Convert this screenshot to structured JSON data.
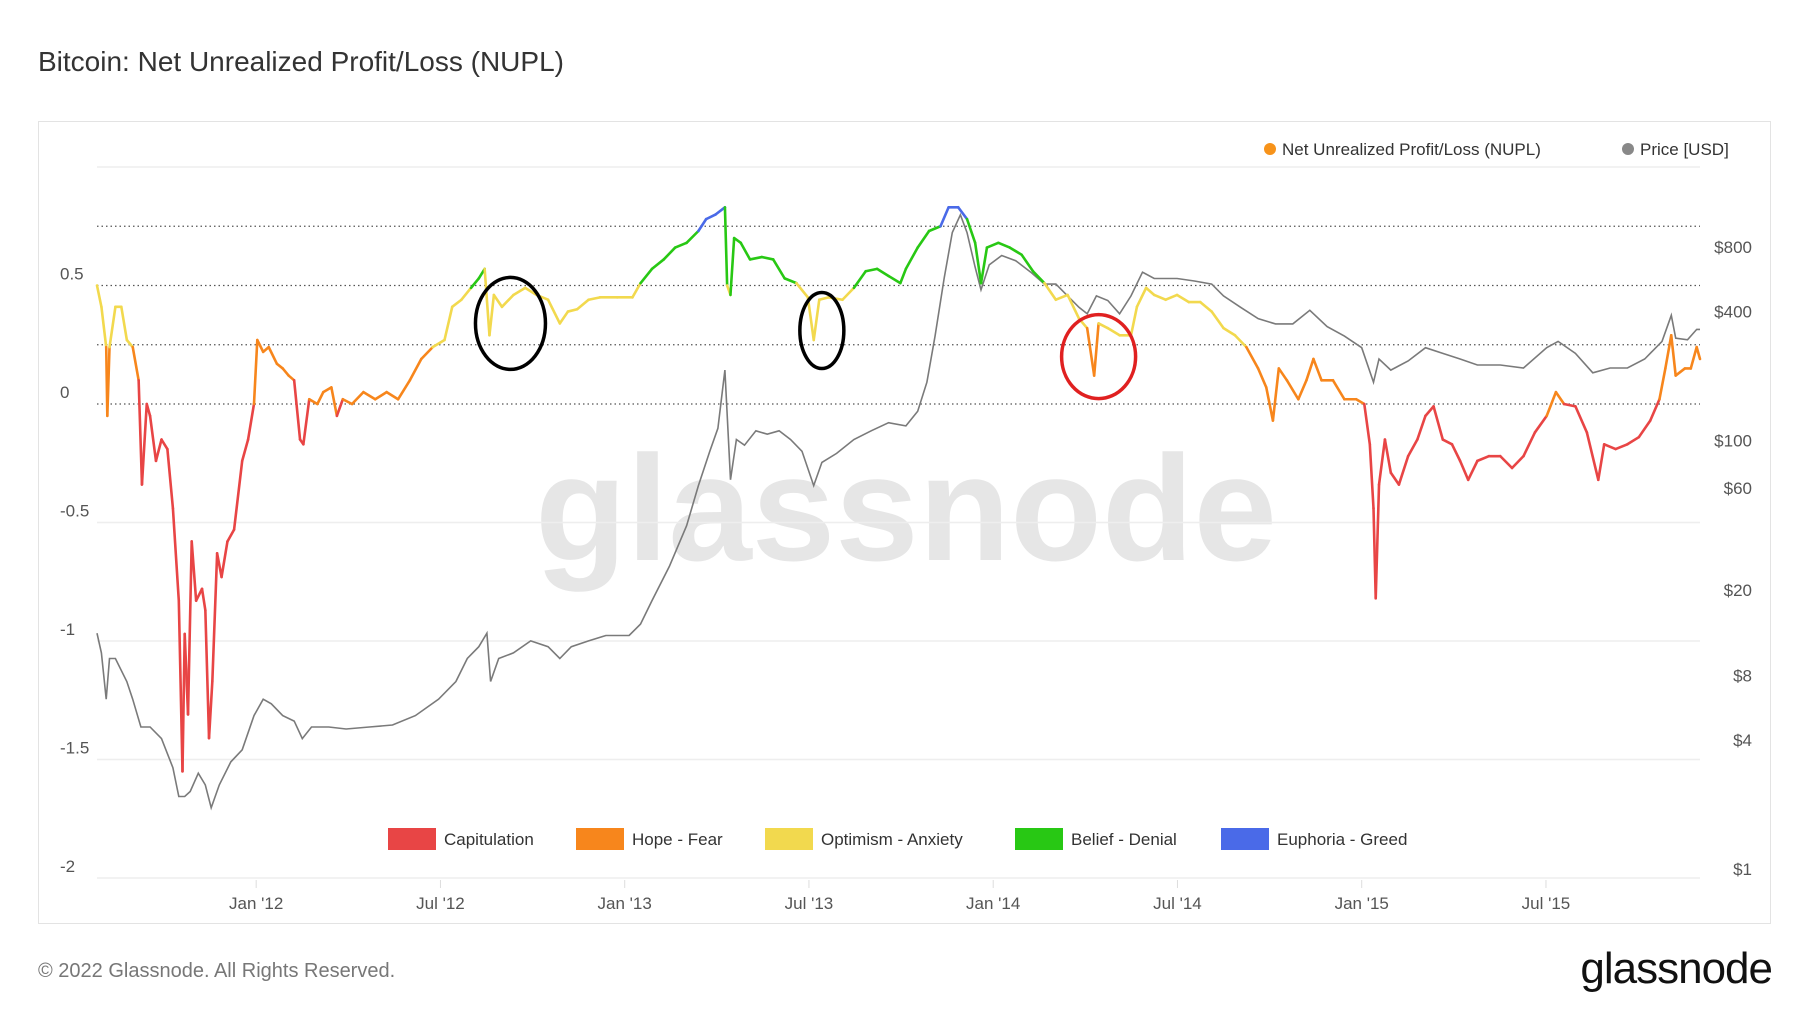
{
  "title": "Bitcoin: Net Unrealized Profit/Loss (NUPL)",
  "footer": "© 2022 Glassnode. All Rights Reserved.",
  "logo": "glassnode",
  "watermark": "glassnode",
  "chart_data": {
    "type": "line",
    "title": "Bitcoin: Net Unrealized Profit/Loss (NUPL)",
    "x_unit": "decimal year",
    "xlim": [
      2011.568,
      2015.918
    ],
    "x_ticks": [
      {
        "x": 2012.0,
        "label": "Jan '12"
      },
      {
        "x": 2012.5,
        "label": "Jul '12"
      },
      {
        "x": 2013.0,
        "label": "Jan '13"
      },
      {
        "x": 2013.5,
        "label": "Jul '13"
      },
      {
        "x": 2014.0,
        "label": "Jan '14"
      },
      {
        "x": 2014.5,
        "label": "Jul '14"
      },
      {
        "x": 2015.0,
        "label": "Jan '15"
      },
      {
        "x": 2015.5,
        "label": "Jul '15"
      }
    ],
    "y_left": {
      "ylim": [
        -2,
        1
      ],
      "ticks": [
        {
          "v": 0.5,
          "label": "0.5"
        },
        {
          "v": 0,
          "label": "0"
        },
        {
          "v": -0.5,
          "label": "-0.5"
        },
        {
          "v": -1,
          "label": "-1"
        },
        {
          "v": -1.5,
          "label": "-1.5"
        },
        {
          "v": -2,
          "label": "-2"
        }
      ],
      "dotted_levels": [
        0.75,
        0.5,
        0.25,
        0
      ],
      "solid_levels": [
        1,
        -0.5,
        -1,
        -1.5,
        -2
      ]
    },
    "y_right": {
      "scale": "log",
      "ticks": [
        {
          "v": 800,
          "label": "$800"
        },
        {
          "v": 400,
          "label": "$400"
        },
        {
          "v": 100,
          "label": "$100"
        },
        {
          "v": 60,
          "label": "$60"
        },
        {
          "v": 20,
          "label": "$20"
        },
        {
          "v": 8,
          "label": "$8"
        },
        {
          "v": 4,
          "label": "$4"
        },
        {
          "v": 1,
          "label": "$1"
        }
      ]
    },
    "legend_top": [
      {
        "label": "Net Unrealized Profit/Loss (NUPL)",
        "color": "#f7931a"
      },
      {
        "label": "Price [USD]",
        "color": "#888888"
      }
    ],
    "zones": [
      {
        "label": "Capitulation",
        "color": "#e84545",
        "min": -10,
        "max": 0
      },
      {
        "label": "Hope - Fear",
        "color": "#f7861c",
        "min": 0,
        "max": 0.25
      },
      {
        "label": "Optimism - Anxiety",
        "color": "#f2d94e",
        "min": 0.25,
        "max": 0.5
      },
      {
        "label": "Belief - Denial",
        "color": "#28c814",
        "min": 0.5,
        "max": 0.75
      },
      {
        "label": "Euphoria - Greed",
        "color": "#4a6ae8",
        "min": 0.75,
        "max": 10
      }
    ],
    "nupl": [
      [
        2011.568,
        0.5
      ],
      [
        2011.58,
        0.41
      ],
      [
        2011.593,
        0.24
      ],
      [
        2011.596,
        -0.05
      ],
      [
        2011.602,
        0.24
      ],
      [
        2011.618,
        0.41
      ],
      [
        2011.634,
        0.41
      ],
      [
        2011.649,
        0.27
      ],
      [
        2011.665,
        0.24
      ],
      [
        2011.681,
        0.1
      ],
      [
        2011.69,
        -0.34
      ],
      [
        2011.703,
        0
      ],
      [
        2011.712,
        -0.05
      ],
      [
        2011.728,
        -0.24
      ],
      [
        2011.743,
        -0.15
      ],
      [
        2011.759,
        -0.19
      ],
      [
        2011.774,
        -0.44
      ],
      [
        2011.79,
        -0.83
      ],
      [
        2011.8,
        -1.55
      ],
      [
        2011.806,
        -0.97
      ],
      [
        2011.815,
        -1.31
      ],
      [
        2011.825,
        -0.58
      ],
      [
        2011.837,
        -0.83
      ],
      [
        2011.853,
        -0.78
      ],
      [
        2011.862,
        -0.87
      ],
      [
        2011.872,
        -1.41
      ],
      [
        2011.881,
        -1.17
      ],
      [
        2011.894,
        -0.63
      ],
      [
        2011.906,
        -0.73
      ],
      [
        2011.922,
        -0.58
      ],
      [
        2011.94,
        -0.53
      ],
      [
        2011.962,
        -0.24
      ],
      [
        2011.978,
        -0.15
      ],
      [
        2011.994,
        0
      ],
      [
        2012.003,
        0.27
      ],
      [
        2012.019,
        0.22
      ],
      [
        2012.034,
        0.24
      ],
      [
        2012.056,
        0.17
      ],
      [
        2012.072,
        0.15
      ],
      [
        2012.088,
        0.12
      ],
      [
        2012.103,
        0.1
      ],
      [
        2012.119,
        -0.15
      ],
      [
        2012.128,
        -0.17
      ],
      [
        2012.144,
        0.02
      ],
      [
        2012.166,
        0
      ],
      [
        2012.182,
        0.05
      ],
      [
        2012.204,
        0.07
      ],
      [
        2012.219,
        -0.05
      ],
      [
        2012.235,
        0.02
      ],
      [
        2012.26,
        0
      ],
      [
        2012.291,
        0.05
      ],
      [
        2012.323,
        0.02
      ],
      [
        2012.354,
        0.05
      ],
      [
        2012.385,
        0.02
      ],
      [
        2012.417,
        0.1
      ],
      [
        2012.448,
        0.19
      ],
      [
        2012.479,
        0.24
      ],
      [
        2012.511,
        0.27
      ],
      [
        2012.532,
        0.41
      ],
      [
        2012.557,
        0.44
      ],
      [
        2012.583,
        0.49
      ],
      [
        2012.604,
        0.53
      ],
      [
        2012.62,
        0.57
      ],
      [
        2012.633,
        0.29
      ],
      [
        2012.645,
        0.46
      ],
      [
        2012.667,
        0.41
      ],
      [
        2012.698,
        0.46
      ],
      [
        2012.73,
        0.49
      ],
      [
        2012.761,
        0.46
      ],
      [
        2012.792,
        0.44
      ],
      [
        2012.824,
        0.34
      ],
      [
        2012.846,
        0.39
      ],
      [
        2012.871,
        0.4
      ],
      [
        2012.902,
        0.44
      ],
      [
        2012.933,
        0.45
      ],
      [
        2012.98,
        0.45
      ],
      [
        2013.021,
        0.45
      ],
      [
        2013.043,
        0.51
      ],
      [
        2013.074,
        0.57
      ],
      [
        2013.106,
        0.61
      ],
      [
        2013.137,
        0.66
      ],
      [
        2013.168,
        0.68
      ],
      [
        2013.2,
        0.73
      ],
      [
        2013.221,
        0.78
      ],
      [
        2013.247,
        0.8
      ],
      [
        2013.272,
        0.83
      ],
      [
        2013.278,
        0.5
      ],
      [
        2013.287,
        0.46
      ],
      [
        2013.297,
        0.7
      ],
      [
        2013.315,
        0.68
      ],
      [
        2013.34,
        0.61
      ],
      [
        2013.372,
        0.62
      ],
      [
        2013.403,
        0.61
      ],
      [
        2013.434,
        0.53
      ],
      [
        2013.466,
        0.51
      ],
      [
        2013.497,
        0.45
      ],
      [
        2013.513,
        0.27
      ],
      [
        2013.528,
        0.44
      ],
      [
        2013.553,
        0.45
      ],
      [
        2013.591,
        0.44
      ],
      [
        2013.622,
        0.49
      ],
      [
        2013.654,
        0.56
      ],
      [
        2013.685,
        0.57
      ],
      [
        2013.716,
        0.54
      ],
      [
        2013.748,
        0.51
      ],
      [
        2013.763,
        0.57
      ],
      [
        2013.795,
        0.66
      ],
      [
        2013.826,
        0.73
      ],
      [
        2013.857,
        0.75
      ],
      [
        2013.879,
        0.83
      ],
      [
        2013.905,
        0.83
      ],
      [
        2013.929,
        0.78
      ],
      [
        2013.951,
        0.68
      ],
      [
        2013.967,
        0.51
      ],
      [
        2013.983,
        0.66
      ],
      [
        2014.014,
        0.68
      ],
      [
        2014.045,
        0.66
      ],
      [
        2014.077,
        0.63
      ],
      [
        2014.108,
        0.56
      ],
      [
        2014.139,
        0.51
      ],
      [
        2014.17,
        0.44
      ],
      [
        2014.202,
        0.46
      ],
      [
        2014.233,
        0.36
      ],
      [
        2014.255,
        0.32
      ],
      [
        2014.274,
        0.12
      ],
      [
        2014.286,
        0.34
      ],
      [
        2014.311,
        0.32
      ],
      [
        2014.343,
        0.29
      ],
      [
        2014.374,
        0.29
      ],
      [
        2014.39,
        0.41
      ],
      [
        2014.415,
        0.49
      ],
      [
        2014.437,
        0.46
      ],
      [
        2014.468,
        0.44
      ],
      [
        2014.499,
        0.46
      ],
      [
        2014.531,
        0.43
      ],
      [
        2014.562,
        0.43
      ],
      [
        2014.593,
        0.39
      ],
      [
        2014.625,
        0.32
      ],
      [
        2014.656,
        0.29
      ],
      [
        2014.687,
        0.24
      ],
      [
        2014.719,
        0.15
      ],
      [
        2014.741,
        0.07
      ],
      [
        2014.759,
        -0.07
      ],
      [
        2014.775,
        0.15
      ],
      [
        2014.797,
        0.1
      ],
      [
        2014.828,
        0.02
      ],
      [
        2014.85,
        0.1
      ],
      [
        2014.869,
        0.19
      ],
      [
        2014.891,
        0.1
      ],
      [
        2014.922,
        0.1
      ],
      [
        2014.953,
        0.02
      ],
      [
        2014.985,
        0.02
      ],
      [
        2015.007,
        0
      ],
      [
        2015.022,
        -0.17
      ],
      [
        2015.032,
        -0.44
      ],
      [
        2015.038,
        -0.82
      ],
      [
        2015.047,
        -0.34
      ],
      [
        2015.063,
        -0.15
      ],
      [
        2015.079,
        -0.29
      ],
      [
        2015.101,
        -0.34
      ],
      [
        2015.126,
        -0.22
      ],
      [
        2015.151,
        -0.15
      ],
      [
        2015.173,
        -0.05
      ],
      [
        2015.195,
        -0.01
      ],
      [
        2015.22,
        -0.15
      ],
      [
        2015.245,
        -0.17
      ],
      [
        2015.267,
        -0.24
      ],
      [
        2015.289,
        -0.32
      ],
      [
        2015.314,
        -0.24
      ],
      [
        2015.345,
        -0.22
      ],
      [
        2015.376,
        -0.22
      ],
      [
        2015.408,
        -0.27
      ],
      [
        2015.439,
        -0.22
      ],
      [
        2015.47,
        -0.12
      ],
      [
        2015.502,
        -0.05
      ],
      [
        2015.527,
        0.05
      ],
      [
        2015.549,
        0
      ],
      [
        2015.58,
        -0.01
      ],
      [
        2015.611,
        -0.12
      ],
      [
        2015.642,
        -0.32
      ],
      [
        2015.658,
        -0.17
      ],
      [
        2015.689,
        -0.19
      ],
      [
        2015.721,
        -0.17
      ],
      [
        2015.752,
        -0.14
      ],
      [
        2015.783,
        -0.07
      ],
      [
        2015.808,
        0.02
      ],
      [
        2015.824,
        0.15
      ],
      [
        2015.84,
        0.29
      ],
      [
        2015.852,
        0.12
      ],
      [
        2015.877,
        0.15
      ],
      [
        2015.893,
        0.15
      ],
      [
        2015.909,
        0.24
      ],
      [
        2015.918,
        0.19
      ]
    ],
    "price": [
      [
        2011.568,
        12.6
      ],
      [
        2011.58,
        10.2
      ],
      [
        2011.593,
        6.2
      ],
      [
        2011.602,
        9.6
      ],
      [
        2011.618,
        9.6
      ],
      [
        2011.649,
        7.5
      ],
      [
        2011.665,
        6.2
      ],
      [
        2011.687,
        4.6
      ],
      [
        2011.712,
        4.6
      ],
      [
        2011.743,
        4.06
      ],
      [
        2011.774,
        2.97
      ],
      [
        2011.79,
        2.18
      ],
      [
        2011.806,
        2.18
      ],
      [
        2011.821,
        2.3
      ],
      [
        2011.843,
        2.8
      ],
      [
        2011.862,
        2.47
      ],
      [
        2011.878,
        1.93
      ],
      [
        2011.9,
        2.47
      ],
      [
        2011.931,
        3.16
      ],
      [
        2011.962,
        3.6
      ],
      [
        2011.994,
        5.2
      ],
      [
        2012.019,
        6.2
      ],
      [
        2012.041,
        5.9
      ],
      [
        2012.072,
        5.2
      ],
      [
        2012.103,
        4.9
      ],
      [
        2012.125,
        4.06
      ],
      [
        2012.15,
        4.6
      ],
      [
        2012.197,
        4.6
      ],
      [
        2012.244,
        4.5
      ],
      [
        2012.307,
        4.6
      ],
      [
        2012.37,
        4.7
      ],
      [
        2012.432,
        5.2
      ],
      [
        2012.495,
        6.2
      ],
      [
        2012.542,
        7.5
      ],
      [
        2012.573,
        9.6
      ],
      [
        2012.604,
        10.9
      ],
      [
        2012.626,
        12.6
      ],
      [
        2012.636,
        7.5
      ],
      [
        2012.658,
        9.6
      ],
      [
        2012.698,
        10.2
      ],
      [
        2012.745,
        11.6
      ],
      [
        2012.792,
        10.9
      ],
      [
        2012.824,
        9.6
      ],
      [
        2012.855,
        10.9
      ],
      [
        2012.902,
        11.6
      ],
      [
        2012.949,
        12.3
      ],
      [
        2013.012,
        12.3
      ],
      [
        2013.043,
        13.9
      ],
      [
        2013.074,
        17.9
      ],
      [
        2013.121,
        25.8
      ],
      [
        2013.168,
        40
      ],
      [
        2013.2,
        61.6
      ],
      [
        2013.231,
        89
      ],
      [
        2013.253,
        114
      ],
      [
        2013.272,
        213
      ],
      [
        2013.287,
        65.6
      ],
      [
        2013.303,
        101
      ],
      [
        2013.325,
        95
      ],
      [
        2013.356,
        111
      ],
      [
        2013.387,
        107
      ],
      [
        2013.419,
        111
      ],
      [
        2013.45,
        101
      ],
      [
        2013.481,
        89
      ],
      [
        2013.513,
        61.6
      ],
      [
        2013.535,
        79
      ],
      [
        2013.575,
        87
      ],
      [
        2013.622,
        101
      ],
      [
        2013.669,
        111
      ],
      [
        2013.716,
        121
      ],
      [
        2013.763,
        117
      ],
      [
        2013.795,
        137
      ],
      [
        2013.82,
        187
      ],
      [
        2013.842,
        306
      ],
      [
        2013.867,
        573
      ],
      [
        2013.889,
        935
      ],
      [
        2013.911,
        1130
      ],
      [
        2013.929,
        935
      ],
      [
        2013.951,
        645
      ],
      [
        2013.967,
        505
      ],
      [
        2013.989,
        660
      ],
      [
        2014.023,
        730
      ],
      [
        2014.061,
        690
      ],
      [
        2014.102,
        610
      ],
      [
        2014.139,
        537
      ],
      [
        2014.17,
        537
      ],
      [
        2014.202,
        473
      ],
      [
        2014.233,
        418
      ],
      [
        2014.255,
        390
      ],
      [
        2014.28,
        473
      ],
      [
        2014.311,
        450
      ],
      [
        2014.343,
        390
      ],
      [
        2014.374,
        473
      ],
      [
        2014.405,
        610
      ],
      [
        2014.437,
        570
      ],
      [
        2014.468,
        570
      ],
      [
        2014.499,
        570
      ],
      [
        2014.546,
        555
      ],
      [
        2014.593,
        537
      ],
      [
        2014.625,
        473
      ],
      [
        2014.672,
        418
      ],
      [
        2014.719,
        370
      ],
      [
        2014.766,
        350
      ],
      [
        2014.813,
        350
      ],
      [
        2014.859,
        405
      ],
      [
        2014.906,
        340
      ],
      [
        2014.953,
        307
      ],
      [
        2015.0,
        271
      ],
      [
        2015.032,
        187
      ],
      [
        2015.047,
        240
      ],
      [
        2015.079,
        213
      ],
      [
        2015.126,
        235
      ],
      [
        2015.173,
        271
      ],
      [
        2015.22,
        255
      ],
      [
        2015.267,
        240
      ],
      [
        2015.314,
        225
      ],
      [
        2015.376,
        225
      ],
      [
        2015.439,
        218
      ],
      [
        2015.502,
        271
      ],
      [
        2015.533,
        290
      ],
      [
        2015.58,
        255
      ],
      [
        2015.627,
        207
      ],
      [
        2015.674,
        218
      ],
      [
        2015.721,
        218
      ],
      [
        2015.768,
        240
      ],
      [
        2015.815,
        290
      ],
      [
        2015.84,
        384
      ],
      [
        2015.852,
        300
      ],
      [
        2015.884,
        295
      ],
      [
        2015.909,
        330
      ],
      [
        2015.918,
        330
      ]
    ],
    "annotations": [
      {
        "shape": "ellipse",
        "color": "#000000",
        "x": 2012.69,
        "nupl": 0.34
      },
      {
        "shape": "ellipse",
        "color": "#000000",
        "x": 2013.535,
        "nupl": 0.31
      },
      {
        "shape": "ellipse",
        "color": "#e02020",
        "x": 2014.286,
        "nupl": 0.2
      }
    ]
  }
}
